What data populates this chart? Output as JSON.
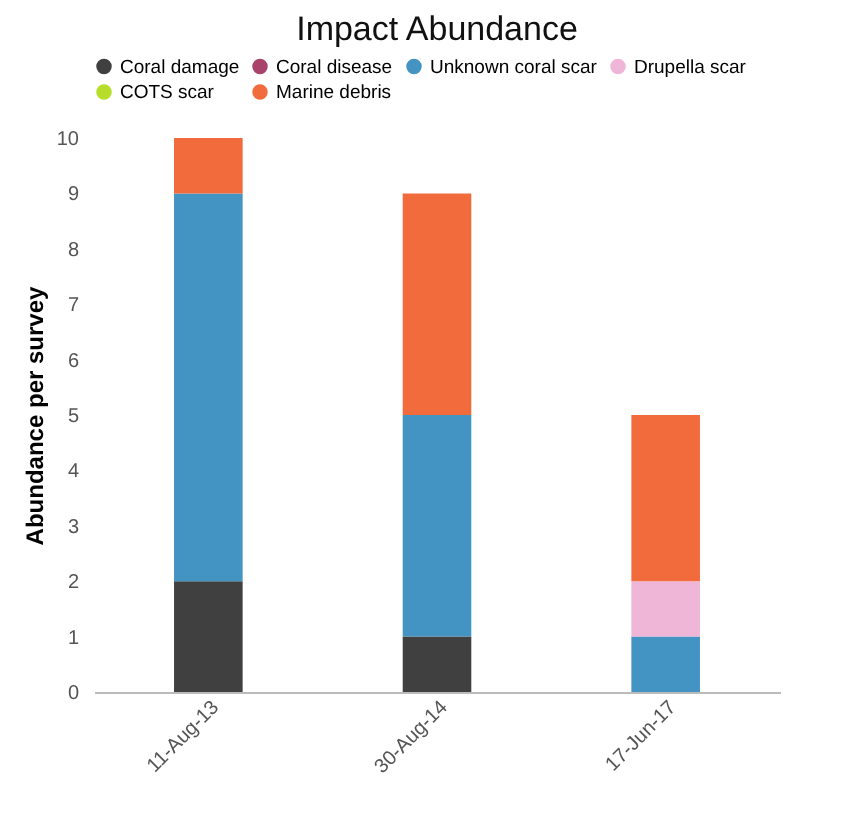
{
  "chart_data": {
    "type": "bar",
    "title": "Impact Abundance",
    "ylabel": "Abundance per survey",
    "categories": [
      "11-Aug-13",
      "30-Aug-14",
      "17-Jun-17"
    ],
    "stacked": true,
    "legend": "top",
    "grid": false,
    "marker": "circle",
    "ylim": [
      0,
      10
    ],
    "yticks": [
      0,
      1,
      2,
      3,
      4,
      5,
      6,
      7,
      8,
      9,
      10
    ],
    "series": [
      {
        "name": "Coral damage",
        "color": "#404040",
        "values": [
          2,
          1,
          0
        ]
      },
      {
        "name": "Coral disease",
        "color": "#a8436b",
        "values": [
          0,
          0,
          0
        ]
      },
      {
        "name": "Unknown coral scar",
        "color": "#4393c3",
        "values": [
          7,
          4,
          1
        ]
      },
      {
        "name": "Drupella scar",
        "color": "#f0b6d8",
        "values": [
          0,
          0,
          1
        ]
      },
      {
        "name": "COTS scar",
        "color": "#b8dc2a",
        "values": [
          0,
          0,
          0
        ]
      },
      {
        "name": "Marine debris",
        "color": "#f26b3c",
        "values": [
          1,
          4,
          3
        ]
      }
    ]
  }
}
